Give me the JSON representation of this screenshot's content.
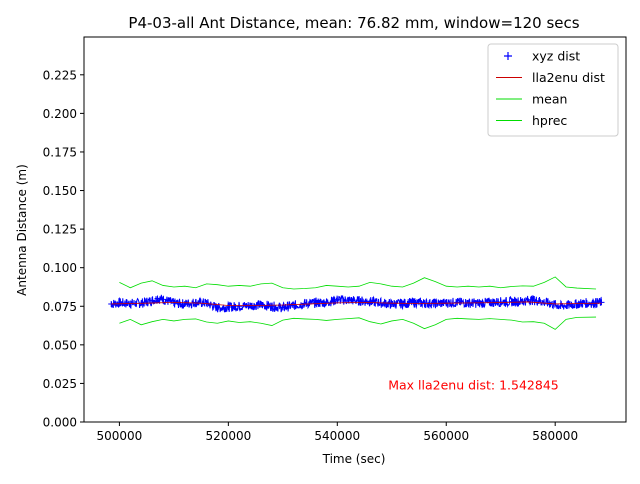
{
  "chart_data": {
    "type": "line",
    "title": "P4-03-all Ant Distance, mean: 76.82 mm, window=120 secs",
    "xlabel": "Time (sec)",
    "ylabel": "Antenna Distance (m)",
    "xlim": [
      493500,
      593000
    ],
    "ylim": [
      0,
      0.2495
    ],
    "xticks": [
      500000,
      520000,
      540000,
      560000,
      580000
    ],
    "xtick_labels": [
      "500000",
      "520000",
      "540000",
      "560000",
      "580000"
    ],
    "yticks": [
      0,
      0.025,
      0.05,
      0.075,
      0.1,
      0.125,
      0.15,
      0.175,
      0.2,
      0.225
    ],
    "ytick_labels": [
      "0.000",
      "0.025",
      "0.050",
      "0.075",
      "0.100",
      "0.125",
      "0.150",
      "0.175",
      "0.200",
      "0.225"
    ],
    "grid": false,
    "legend_position": "top-right",
    "annotation": {
      "text": "Max lla2enu dist: 1.542845",
      "x": 565000,
      "y": 0.021,
      "color": "#ff0000"
    },
    "series": [
      {
        "name": "xyz dist",
        "style": "markers",
        "marker": "+",
        "color": "#0000ff",
        "x": [
          498500,
          500000,
          502000,
          504000,
          506000,
          507000,
          508000,
          510000,
          512000,
          514000,
          516000,
          518000,
          520000,
          522000,
          524000,
          526000,
          528000,
          530000,
          532000,
          534000,
          536000,
          538000,
          540000,
          542000,
          544000,
          546000,
          548000,
          550000,
          552000,
          554000,
          556000,
          558000,
          560000,
          562000,
          564000,
          566000,
          568000,
          570000,
          572000,
          574000,
          575500,
          577000,
          579000,
          581000,
          583000,
          585000,
          587000,
          588500
        ],
        "y": [
          0.0765,
          0.0772,
          0.0768,
          0.077,
          0.0788,
          0.08,
          0.0795,
          0.077,
          0.0765,
          0.0775,
          0.077,
          0.074,
          0.0745,
          0.075,
          0.0755,
          0.076,
          0.075,
          0.0742,
          0.0755,
          0.0768,
          0.0772,
          0.0775,
          0.0792,
          0.079,
          0.0785,
          0.078,
          0.0772,
          0.0765,
          0.0768,
          0.0775,
          0.077,
          0.0768,
          0.0772,
          0.0775,
          0.0772,
          0.077,
          0.0775,
          0.0778,
          0.078,
          0.0782,
          0.0792,
          0.0785,
          0.0768,
          0.0752,
          0.076,
          0.077,
          0.0772,
          0.0775
        ],
        "spread": 0.0032
      },
      {
        "name": "lla2enu dist",
        "style": "line",
        "color": "#cc0000",
        "x": [
          498500,
          505000,
          510000,
          515000,
          520000,
          525000,
          530000,
          535000,
          540000,
          545000,
          550000,
          555000,
          560000,
          565000,
          570000,
          575000,
          580000,
          585000,
          588500
        ],
        "y": [
          0.0765,
          0.077,
          0.0775,
          0.077,
          0.0755,
          0.0755,
          0.0758,
          0.0765,
          0.0772,
          0.0775,
          0.077,
          0.0768,
          0.077,
          0.0772,
          0.0774,
          0.0778,
          0.0765,
          0.0768,
          0.077
        ]
      },
      {
        "name": "mean",
        "style": "line",
        "color": "#00dd00",
        "x": [
          500000,
          502000,
          504000,
          506000,
          508000,
          510000,
          512000,
          514000,
          516000,
          518000,
          520000,
          522000,
          524000,
          526000,
          528000,
          530000,
          532000,
          534000,
          536000,
          538000,
          540000,
          542000,
          544000,
          546000,
          548000,
          550000,
          552000,
          554000,
          556000,
          558000,
          560000,
          562000,
          564000,
          566000,
          568000,
          570000,
          572000,
          574000,
          576000,
          578000,
          580000,
          582000,
          584000,
          587500
        ],
        "y": [
          0.0905,
          0.087,
          0.09,
          0.0915,
          0.0885,
          0.0875,
          0.088,
          0.087,
          0.0895,
          0.089,
          0.088,
          0.0885,
          0.088,
          0.0895,
          0.09,
          0.087,
          0.0862,
          0.0865,
          0.087,
          0.0885,
          0.088,
          0.0875,
          0.088,
          0.0905,
          0.0895,
          0.088,
          0.0875,
          0.09,
          0.0935,
          0.091,
          0.088,
          0.0875,
          0.088,
          0.0875,
          0.088,
          0.087,
          0.0878,
          0.0882,
          0.088,
          0.0905,
          0.094,
          0.0875,
          0.0868,
          0.0862
        ]
      },
      {
        "name": "hprec",
        "style": "line",
        "color": "#00dd00",
        "x": [
          500000,
          502000,
          504000,
          506000,
          508000,
          510000,
          512000,
          514000,
          516000,
          518000,
          520000,
          522000,
          524000,
          526000,
          528000,
          530000,
          532000,
          534000,
          536000,
          538000,
          540000,
          542000,
          544000,
          546000,
          548000,
          550000,
          552000,
          554000,
          556000,
          558000,
          560000,
          562000,
          564000,
          566000,
          568000,
          570000,
          572000,
          574000,
          576000,
          578000,
          580000,
          582000,
          584000,
          587500
        ],
        "y": [
          0.064,
          0.0665,
          0.063,
          0.065,
          0.0665,
          0.0655,
          0.0665,
          0.0668,
          0.0648,
          0.064,
          0.0655,
          0.0645,
          0.065,
          0.064,
          0.0625,
          0.066,
          0.0672,
          0.0668,
          0.0665,
          0.0658,
          0.0665,
          0.067,
          0.0675,
          0.065,
          0.0635,
          0.0655,
          0.0665,
          0.064,
          0.0605,
          0.063,
          0.0665,
          0.0672,
          0.0668,
          0.0665,
          0.067,
          0.0665,
          0.066,
          0.0648,
          0.065,
          0.064,
          0.06,
          0.0665,
          0.0678,
          0.068
        ]
      }
    ]
  }
}
